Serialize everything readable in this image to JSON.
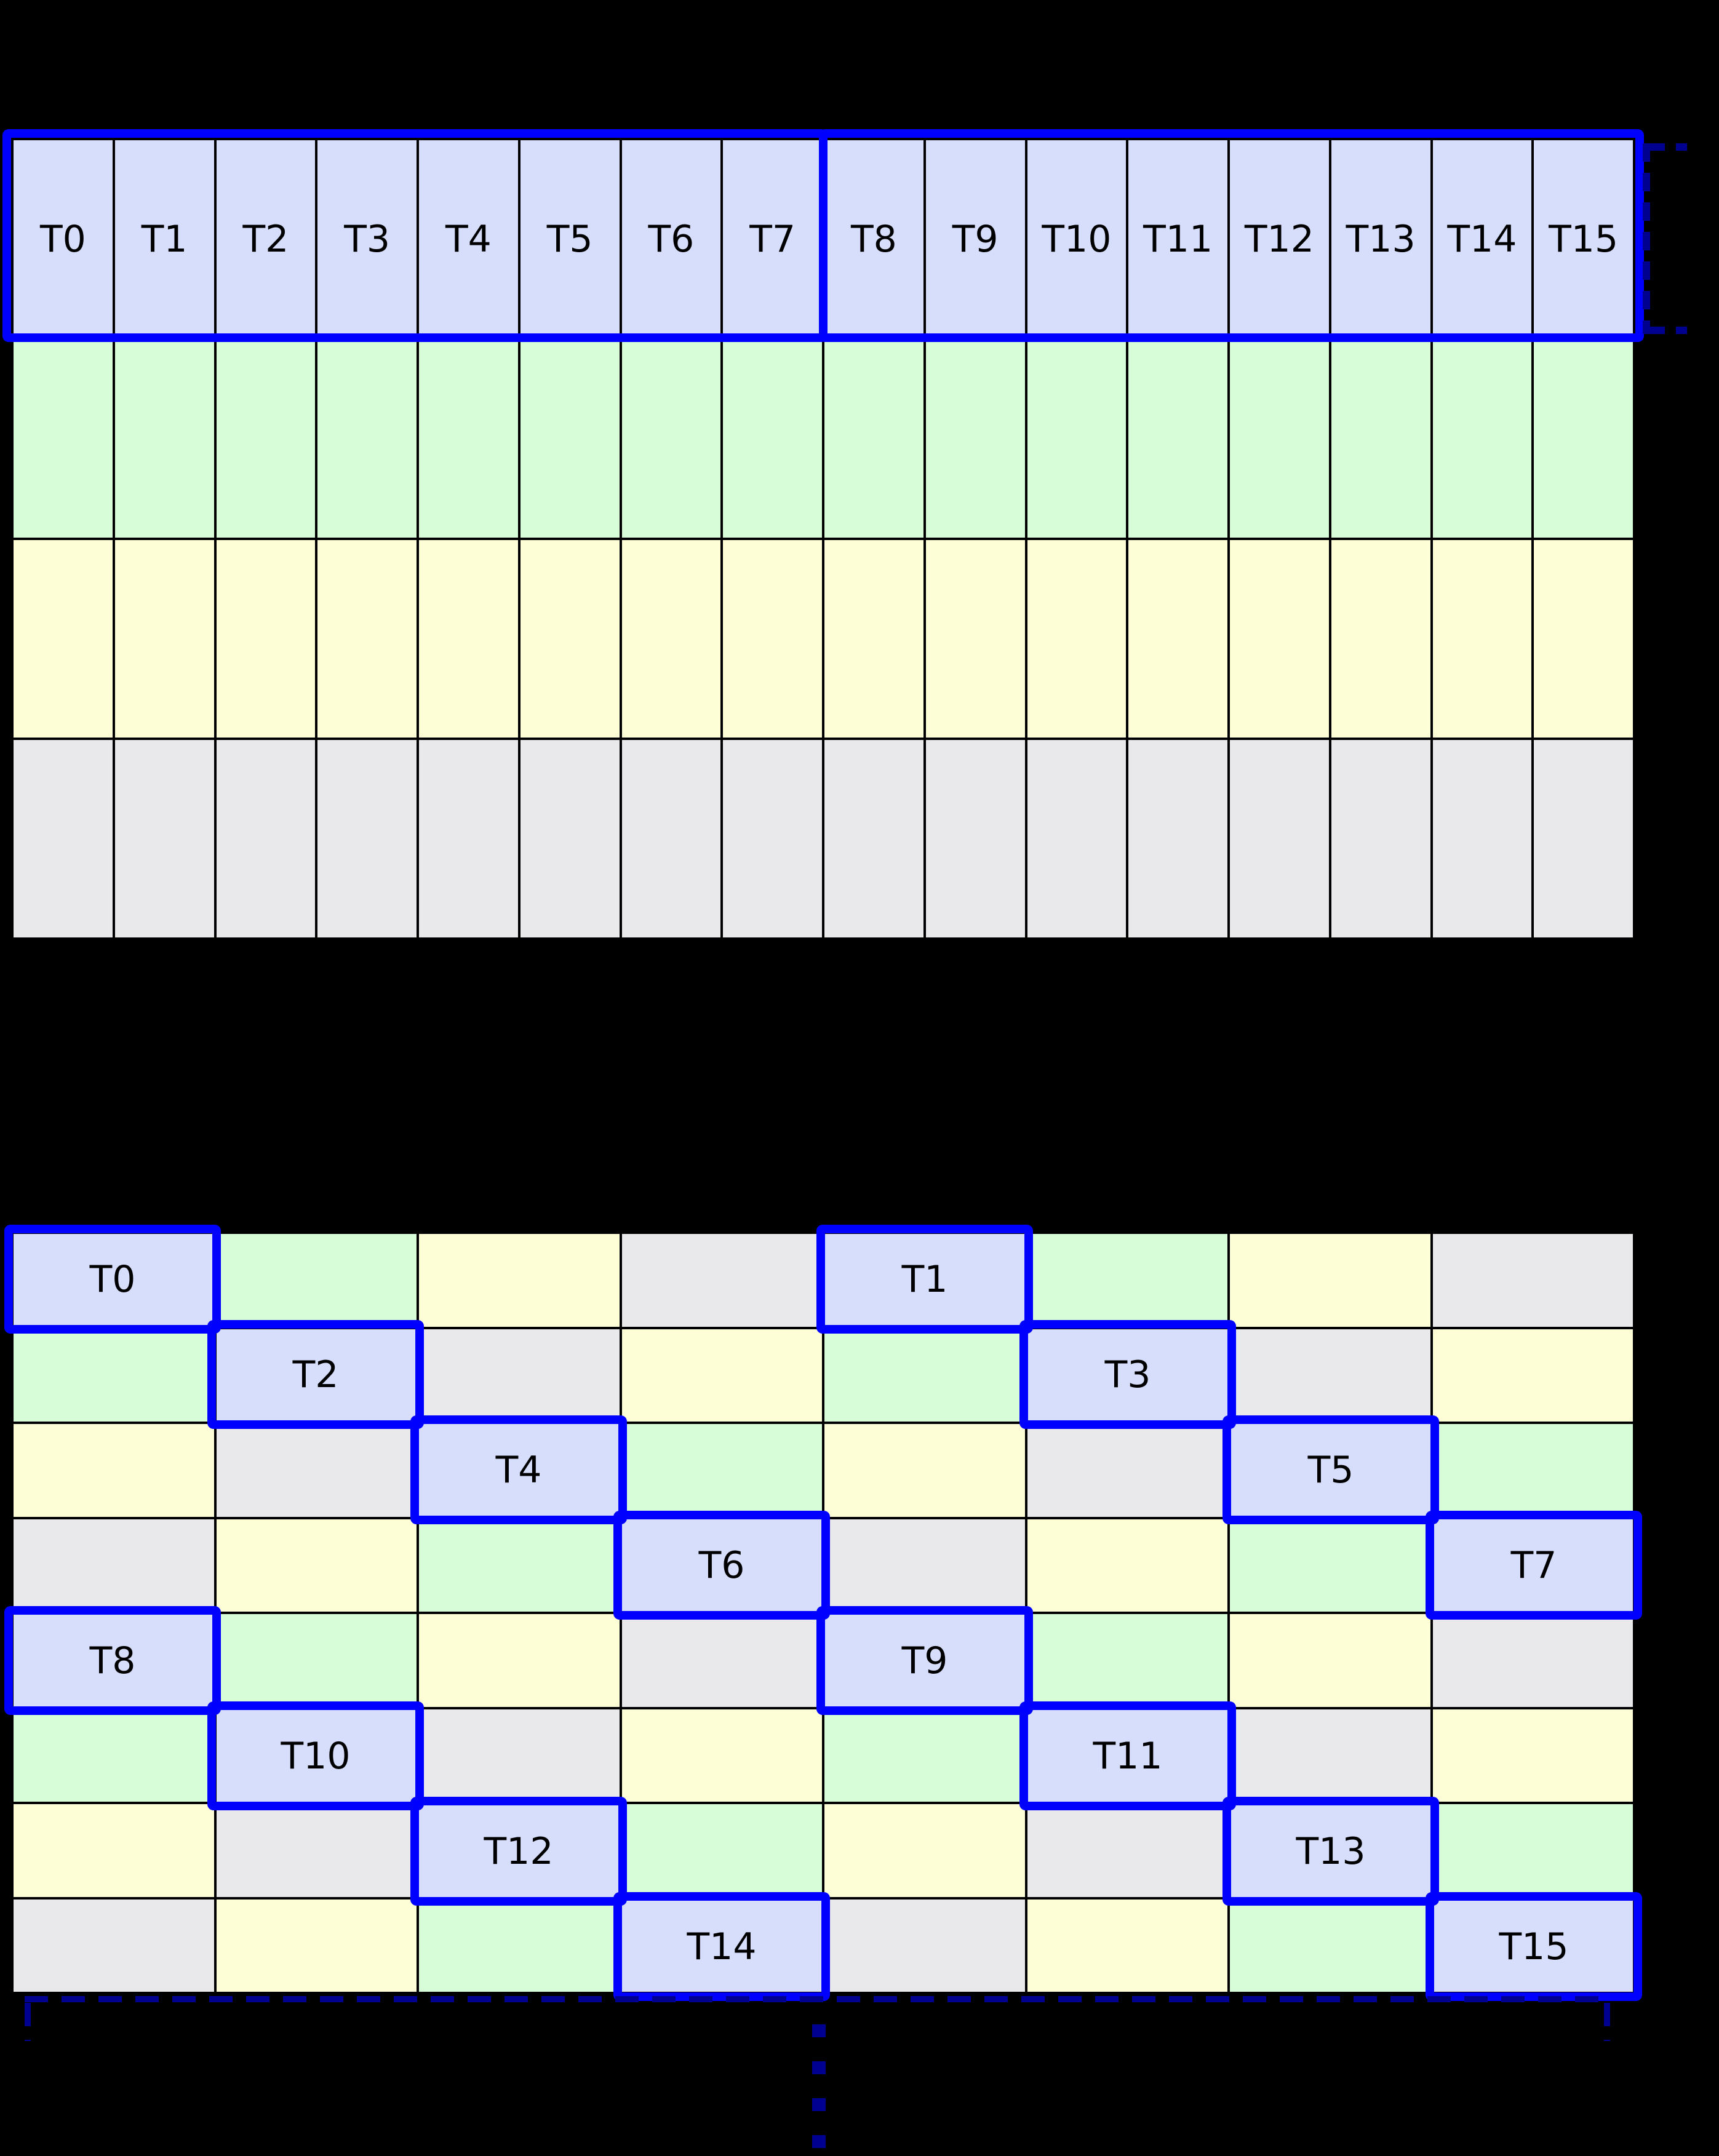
{
  "canvas": {
    "background": "#000000"
  },
  "palette": {
    "bank_blue": "#d7defb",
    "bank_green": "#d6fcd8",
    "bank_yellow": "#fdfdd6",
    "bank_gray": "#e9e9eb",
    "highlight_blue": "#0000ff",
    "annotation_navy": "#000090",
    "line_black": "#000000",
    "label_black": "#000000"
  },
  "top_grid": {
    "columns": 16,
    "rows": 4,
    "row_fills": [
      "bank_blue",
      "bank_green",
      "bank_yellow",
      "bank_gray"
    ],
    "thread_labels": [
      "T0",
      "T1",
      "T2",
      "T3",
      "T4",
      "T5",
      "T6",
      "T7",
      "T8",
      "T9",
      "T10",
      "T11",
      "T12",
      "T13",
      "T14",
      "T15"
    ],
    "group_boxes": [
      {
        "name": "thread-group-box-T0-T7",
        "first": "T0",
        "last": "T7"
      },
      {
        "name": "thread-group-box-T8-T15",
        "first": "T8",
        "last": "T15"
      }
    ]
  },
  "bottom_grid": {
    "columns": 8,
    "rows": 8,
    "code_map": {
      "B": "bank_blue",
      "G": "bank_green",
      "Y": "bank_yellow",
      "X": "bank_gray"
    },
    "fill_codes": [
      "BGYXBGYX",
      "GBXYGBXY",
      "YXBGYXBG",
      "XYGBXYGB",
      "BGYXBGYX",
      "GBXYGBXY",
      "YXBGYXBG",
      "XYGBXYGB"
    ],
    "thread_cells": [
      {
        "label": "T0",
        "row": 0,
        "col": 0
      },
      {
        "label": "T1",
        "row": 0,
        "col": 4
      },
      {
        "label": "T2",
        "row": 1,
        "col": 1
      },
      {
        "label": "T3",
        "row": 1,
        "col": 5
      },
      {
        "label": "T4",
        "row": 2,
        "col": 2
      },
      {
        "label": "T5",
        "row": 2,
        "col": 6
      },
      {
        "label": "T6",
        "row": 3,
        "col": 3
      },
      {
        "label": "T7",
        "row": 3,
        "col": 7
      },
      {
        "label": "T8",
        "row": 4,
        "col": 0
      },
      {
        "label": "T9",
        "row": 4,
        "col": 4
      },
      {
        "label": "T10",
        "row": 5,
        "col": 1
      },
      {
        "label": "T11",
        "row": 5,
        "col": 5
      },
      {
        "label": "T12",
        "row": 6,
        "col": 2
      },
      {
        "label": "T13",
        "row": 6,
        "col": 6
      },
      {
        "label": "T14",
        "row": 7,
        "col": 3
      },
      {
        "label": "T15",
        "row": 7,
        "col": 7
      }
    ]
  },
  "annotations": {
    "right_bracket": {
      "name": "row-height-dashed-bracket",
      "color": "#000090"
    },
    "bottom_bracket": {
      "name": "grid-width-dashed-bracket",
      "color": "#000090"
    },
    "ellipsis": {
      "name": "vertical-continuation-ellipsis",
      "color": "#000090",
      "dash_count": 4
    }
  }
}
